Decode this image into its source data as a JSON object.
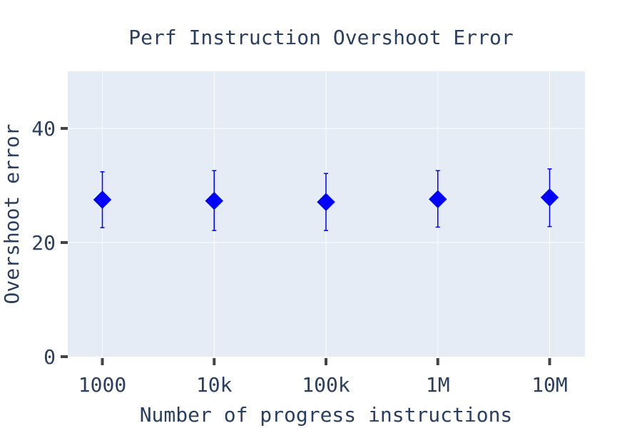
{
  "chart_data": {
    "type": "scatter",
    "title": "Perf Instruction Overshoot Error",
    "xlabel": "Number of progress instructions",
    "ylabel": "Overshoot error",
    "categories": [
      "1000",
      "10k",
      "100k",
      "1M",
      "10M"
    ],
    "series": [
      {
        "values": [
          27.5,
          27.3,
          27.1,
          27.6,
          27.9
        ],
        "error_upper": [
          32.4,
          32.6,
          32.1,
          32.6,
          32.9
        ],
        "error_lower": [
          22.6,
          22.1,
          22.1,
          22.7,
          22.8
        ],
        "marker": "diamond",
        "color": "#0000ff"
      }
    ],
    "ylim": [
      0,
      50
    ],
    "yticks": [
      0,
      20,
      40
    ],
    "grid": true,
    "plot_background": "#e5ecf6",
    "text_color": "#2a3f5f"
  }
}
